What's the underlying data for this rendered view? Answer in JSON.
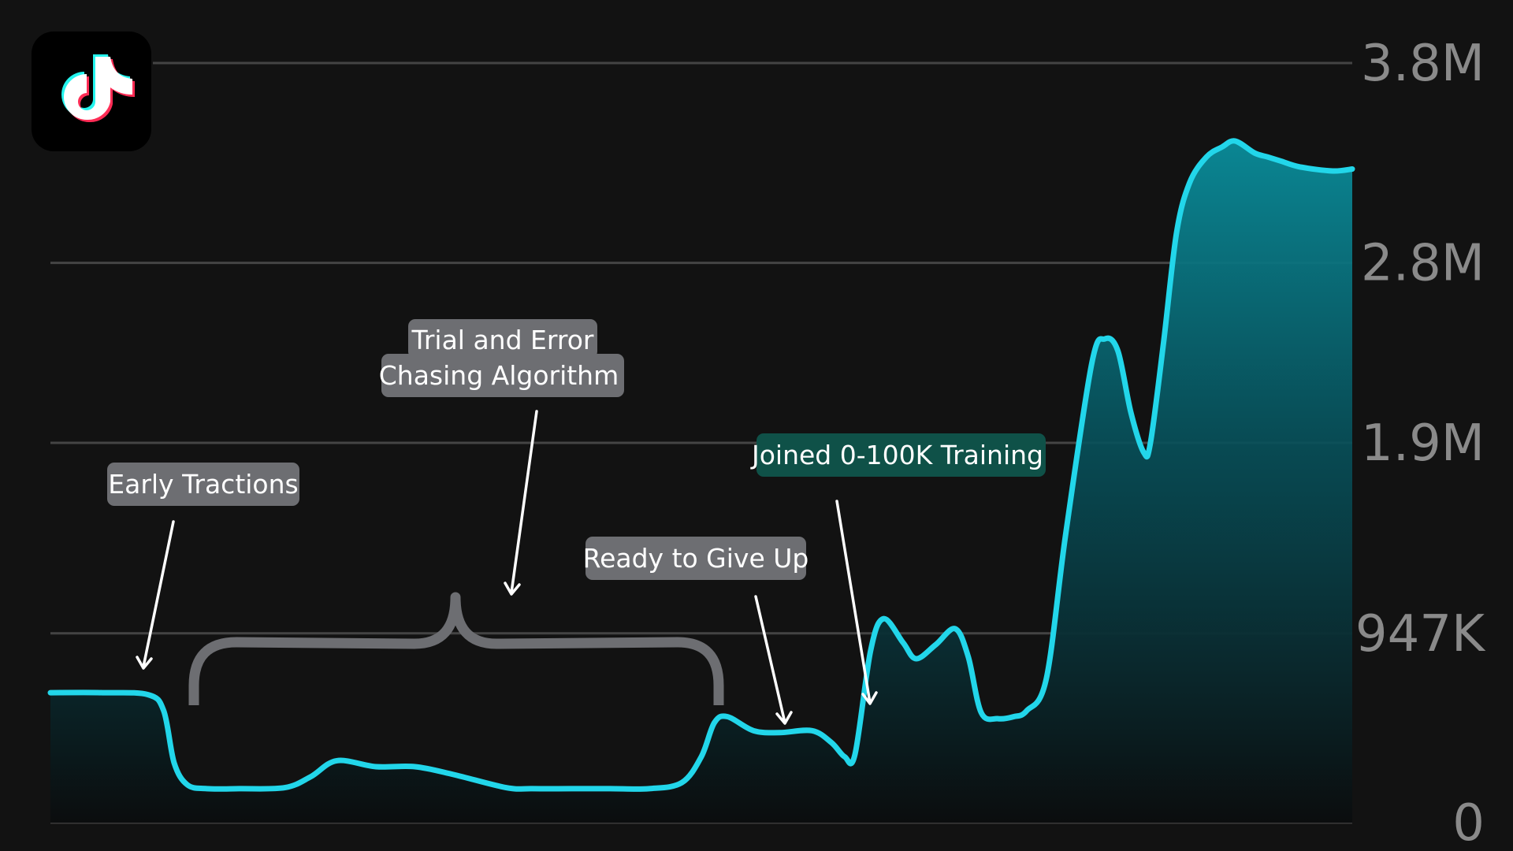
{
  "colors": {
    "background": "#121212",
    "line": "#22d6ea",
    "area_top": "#0a8c9a",
    "area_bottom": "#0b0d0e",
    "label_gray": "#6d6e72",
    "label_green": "#0f5148",
    "brace": "#6d6e72",
    "logo_bg": "#000000"
  },
  "logo": {
    "icon": "tiktok-note-icon"
  },
  "chart_data": {
    "type": "area",
    "title": "",
    "xlabel": "",
    "ylabel": "",
    "ylim": [
      0,
      3800000
    ],
    "yticks": [
      {
        "value": 3800000,
        "label": "3.8M"
      },
      {
        "value": 2800000,
        "label": "2.8M"
      },
      {
        "value": 1900000,
        "label": "1.9M"
      },
      {
        "value": 947000,
        "label": "947K"
      },
      {
        "value": 0,
        "label": "0"
      }
    ],
    "grid": true,
    "x": [
      0,
      0.04,
      0.075,
      0.087,
      0.095,
      0.105,
      0.12,
      0.145,
      0.18,
      0.2,
      0.22,
      0.25,
      0.28,
      0.31,
      0.35,
      0.37,
      0.4,
      0.43,
      0.46,
      0.485,
      0.5,
      0.51,
      0.52,
      0.54,
      0.56,
      0.585,
      0.6,
      0.61,
      0.618,
      0.63,
      0.64,
      0.655,
      0.665,
      0.68,
      0.695,
      0.705,
      0.715,
      0.728,
      0.74,
      0.75,
      0.765,
      0.78,
      0.8,
      0.81,
      0.82,
      0.83,
      0.84,
      0.845,
      0.855,
      0.865,
      0.875,
      0.888,
      0.9,
      0.91,
      0.925,
      0.935,
      0.945,
      0.96,
      0.985,
      1.0
    ],
    "values": [
      650000,
      650000,
      640000,
      560000,
      300000,
      190000,
      170000,
      170000,
      175000,
      230000,
      310000,
      280000,
      280000,
      240000,
      175000,
      170000,
      170000,
      170000,
      170000,
      200000,
      330000,
      500000,
      530000,
      460000,
      450000,
      460000,
      400000,
      330000,
      340000,
      860000,
      1020000,
      900000,
      820000,
      890000,
      970000,
      830000,
      550000,
      520000,
      530000,
      560000,
      720000,
      1450000,
      2300000,
      2420000,
      2360000,
      2050000,
      1850000,
      1900000,
      2400000,
      2950000,
      3200000,
      3330000,
      3380000,
      3410000,
      3350000,
      3330000,
      3310000,
      3280000,
      3260000,
      3270000
    ]
  },
  "annotations": [
    {
      "text": "Early Tractions",
      "style": "gray"
    },
    {
      "line1": "Trial and Error",
      "line2": "Chasing Algorithm",
      "style": "gray"
    },
    {
      "text": "Ready to Give Up",
      "style": "gray"
    },
    {
      "text": "Joined 0-100K Training",
      "style": "green"
    }
  ]
}
